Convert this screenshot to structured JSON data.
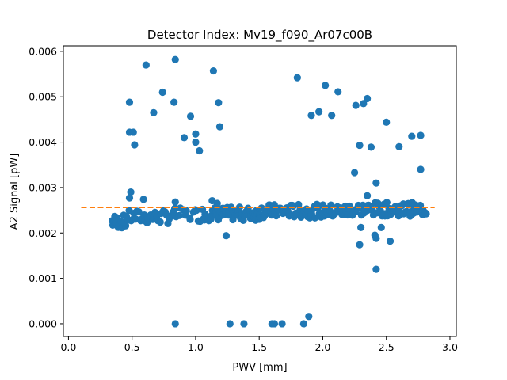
{
  "chart_data": {
    "type": "scatter",
    "title": "Detector Index: Mv19_f090_Ar07c00B",
    "xlabel": "PWV [mm]",
    "ylabel": "A2 Signal [pW]",
    "xlim": [
      -0.04,
      3.05
    ],
    "ylim": [
      -0.00028,
      0.00612
    ],
    "xticks": [
      0.0,
      0.5,
      1.0,
      1.5,
      2.0,
      2.5,
      3.0
    ],
    "xtick_labels": [
      "0.0",
      "0.5",
      "1.0",
      "1.5",
      "2.0",
      "2.5",
      "3.0"
    ],
    "yticks": [
      0.0,
      0.001,
      0.002,
      0.003,
      0.004,
      0.005,
      0.006
    ],
    "ytick_labels": [
      "0.000",
      "0.001",
      "0.002",
      "0.003",
      "0.004",
      "0.005",
      "0.006"
    ],
    "point_color": "#1f77b4",
    "fit_line": {
      "x": [
        0.1,
        2.88
      ],
      "y": [
        0.00256,
        0.00256
      ],
      "color": "#ff7f0e",
      "style": "dashed"
    },
    "outliers": [
      [
        0.48,
        0.00488
      ],
      [
        0.48,
        0.00422
      ],
      [
        0.51,
        0.00422
      ],
      [
        0.52,
        0.00394
      ],
      [
        0.49,
        0.0029
      ],
      [
        0.48,
        0.00277
      ],
      [
        0.59,
        0.00274
      ],
      [
        0.61,
        0.0057
      ],
      [
        0.67,
        0.00465
      ],
      [
        0.74,
        0.0051
      ],
      [
        0.83,
        0.00488
      ],
      [
        0.84,
        0.00582
      ],
      [
        0.84,
        0.00268
      ],
      [
        0.91,
        0.0041
      ],
      [
        0.96,
        0.00457
      ],
      [
        1.0,
        0.00418
      ],
      [
        1.0,
        0.004
      ],
      [
        1.03,
        0.00381
      ],
      [
        1.14,
        0.00557
      ],
      [
        1.18,
        0.00487
      ],
      [
        1.19,
        0.00434
      ],
      [
        1.13,
        0.00271
      ],
      [
        1.17,
        0.00265
      ],
      [
        1.24,
        0.00194
      ],
      [
        1.8,
        0.00542
      ],
      [
        1.91,
        0.00459
      ],
      [
        1.97,
        0.00467
      ],
      [
        2.02,
        0.00525
      ],
      [
        2.07,
        0.00459
      ],
      [
        2.12,
        0.00511
      ],
      [
        2.26,
        0.00481
      ],
      [
        2.32,
        0.00485
      ],
      [
        2.35,
        0.00496
      ],
      [
        2.29,
        0.00393
      ],
      [
        2.38,
        0.00389
      ],
      [
        2.5,
        0.00444
      ],
      [
        2.6,
        0.0039
      ],
      [
        2.7,
        0.00413
      ],
      [
        2.77,
        0.00415
      ],
      [
        2.77,
        0.0034
      ],
      [
        2.25,
        0.00333
      ],
      [
        2.42,
        0.0031
      ],
      [
        2.35,
        0.00282
      ],
      [
        2.29,
        0.00174
      ],
      [
        2.41,
        0.00195
      ],
      [
        2.42,
        0.00188
      ],
      [
        2.53,
        0.00182
      ],
      [
        2.42,
        0.0012
      ],
      [
        2.3,
        0.00212
      ],
      [
        2.46,
        0.00212
      ],
      [
        1.89,
        0.00016
      ],
      [
        0.84,
        0.0
      ],
      [
        1.27,
        0.0
      ],
      [
        1.38,
        0.0
      ],
      [
        1.6,
        0.0
      ],
      [
        1.62,
        0.0
      ],
      [
        1.68,
        0.0
      ],
      [
        1.85,
        0.0
      ]
    ],
    "bulk_bands": [
      {
        "x": [
          0.34,
          0.45
        ],
        "y": 0.00225,
        "n": 14
      },
      {
        "x": [
          0.45,
          0.8
        ],
        "y": 0.00235,
        "n": 28
      },
      {
        "x": [
          0.8,
          1.05
        ],
        "y": 0.0024,
        "n": 16
      },
      {
        "x": [
          1.05,
          1.5
        ],
        "y": 0.00242,
        "n": 60
      },
      {
        "x": [
          1.5,
          2.2
        ],
        "y": 0.00248,
        "n": 80
      },
      {
        "x": [
          2.2,
          2.82
        ],
        "y": 0.00252,
        "n": 70
      }
    ]
  }
}
